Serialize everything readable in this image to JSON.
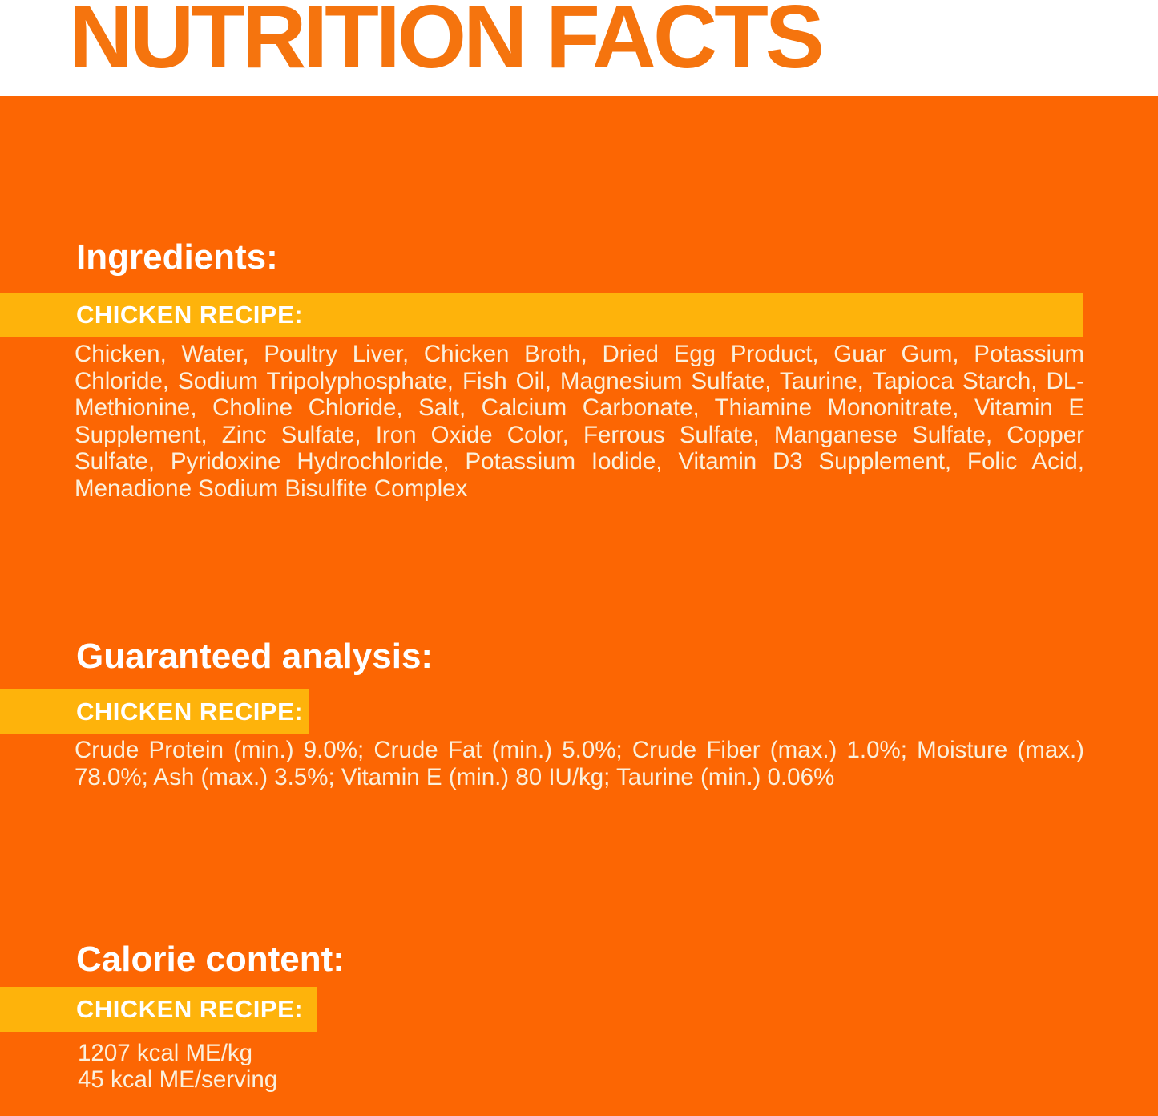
{
  "colors": {
    "header_bg": "#FFFFFF",
    "title_orange": "#F5740E",
    "body_orange": "#FC6603",
    "band_yellow": "#FEB30B",
    "heading_white": "#FFFFFF",
    "paragraph_cream": "#FBF0DC"
  },
  "title": "NUTRITION FACTS",
  "sections": [
    {
      "heading": "Ingredients:",
      "band_label": "CHICKEN RECIPE:",
      "body": "Chicken, Water, Poultry Liver, Chicken Broth, Dried Egg Product, Guar Gum, Potassium Chloride, Sodium Tripolyphosphate, Fish Oil, Magnesium Sulfate, Taurine, Tapioca Starch, DL-Methionine, Choline Chloride, Salt, Calcium Carbonate, Thiamine Mononitrate, Vitamin E Supplement, Zinc Sulfate, Iron Oxide Color, Ferrous Sulfate, Manganese Sulfate, Copper Sulfate, Pyridoxine Hydrochloride, Potassium Iodide, Vitamin D3 Supplement, Folic Acid, Menadione Sodium Bisulfite Complex"
    },
    {
      "heading": "Guaranteed analysis:",
      "band_label": "CHICKEN RECIPE:",
      "body": "Crude Protein (min.) 9.0%; Crude Fat (min.) 5.0%; Crude Fiber (max.) 1.0%; Moisture (max.) 78.0%; Ash (max.) 3.5%; Vitamin E (min.) 80 IU/kg; Taurine (min.) 0.06%"
    },
    {
      "heading": "Calorie content:",
      "band_label": "CHICKEN RECIPE:",
      "lines": [
        "1207 kcal ME/kg",
        "45 kcal ME/serving"
      ]
    }
  ]
}
